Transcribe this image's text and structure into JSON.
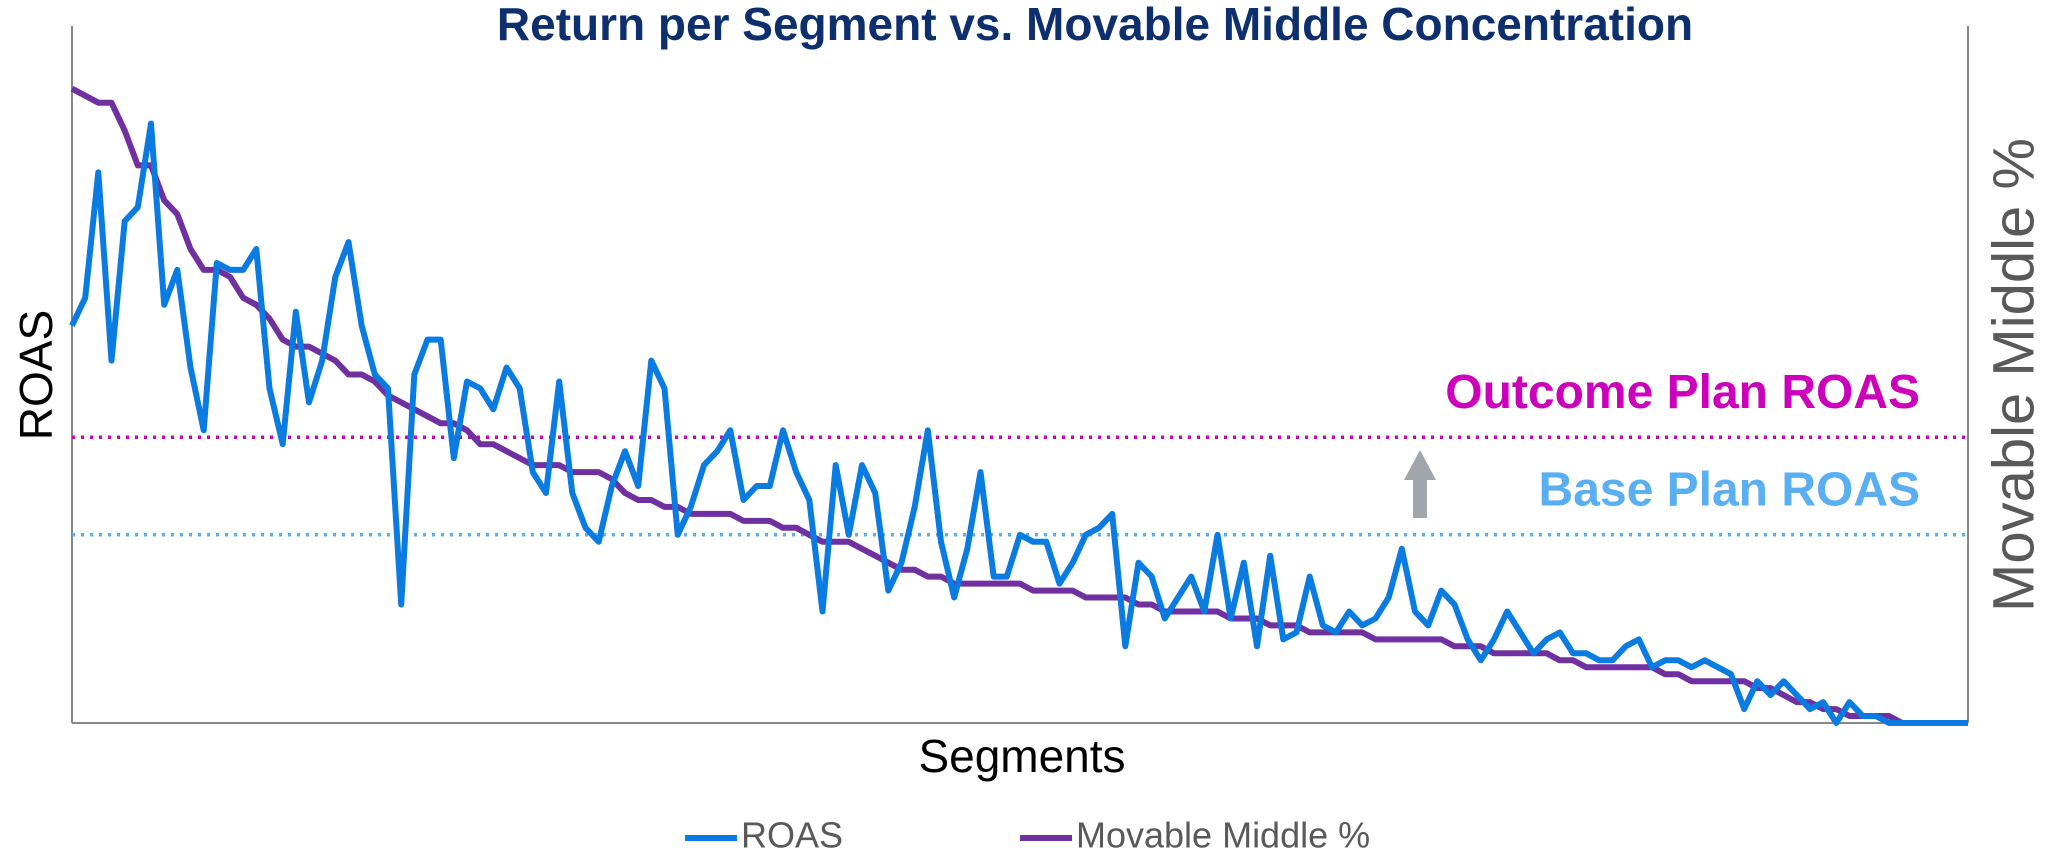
{
  "chart_data": {
    "type": "line",
    "title": "Return per Segment vs. Movable Middle Concentration",
    "xlabel": "Segments",
    "ylabel": "ROAS",
    "y2label": "Movable Middle %",
    "x": [
      1,
      2,
      3,
      4,
      5,
      6,
      7,
      8,
      9,
      10,
      11,
      12,
      13,
      14,
      15,
      16,
      17,
      18,
      19,
      20,
      21,
      22,
      23,
      24,
      25,
      26,
      27,
      28,
      29,
      30,
      31,
      32,
      33,
      34,
      35,
      36,
      37,
      38,
      39,
      40,
      41,
      42,
      43,
      44,
      45,
      46,
      47,
      48,
      49,
      50,
      51,
      52,
      53,
      54,
      55,
      56,
      57,
      58,
      59,
      60,
      61,
      62,
      63,
      64,
      65,
      66,
      67,
      68,
      69,
      70,
      71,
      72,
      73,
      74,
      75,
      76,
      77,
      78,
      79,
      80,
      81,
      82,
      83,
      84,
      85,
      86,
      87,
      88,
      89,
      90,
      91,
      92,
      93,
      94,
      95,
      96,
      97,
      98,
      99,
      100,
      101,
      102,
      103,
      104,
      105,
      106,
      107,
      108,
      109,
      110,
      111,
      112,
      113,
      114,
      115,
      116,
      117,
      118,
      119,
      120,
      121,
      122,
      123,
      124,
      125,
      126,
      127,
      128,
      129,
      130,
      131,
      132,
      133,
      134,
      135,
      136,
      137,
      138,
      139,
      140,
      141,
      142,
      143,
      144,
      145
    ],
    "xlim": [
      1,
      145
    ],
    "ylim": [
      0,
      100
    ],
    "y2lim": [
      0,
      100
    ],
    "series": [
      {
        "name": "ROAS",
        "color": "#0a7be0",
        "values": [
          57,
          61,
          79,
          52,
          72,
          74,
          86,
          60,
          65,
          51,
          42,
          66,
          65,
          65,
          68,
          48,
          40,
          59,
          46,
          52,
          64,
          69,
          57,
          50,
          48,
          17,
          50,
          55,
          55,
          38,
          49,
          48,
          45,
          51,
          48,
          36,
          33,
          49,
          33,
          28,
          26,
          34,
          39,
          34,
          52,
          48,
          27,
          31,
          37,
          39,
          42,
          32,
          34,
          34,
          42,
          36,
          32,
          16,
          37,
          27,
          37,
          33,
          19,
          23,
          31,
          42,
          26,
          18,
          25,
          36,
          21,
          21,
          27,
          26,
          26,
          20,
          23,
          27,
          28,
          30,
          11,
          23,
          21,
          15,
          18,
          21,
          16,
          27,
          15,
          23,
          11,
          24,
          12,
          13,
          21,
          14,
          13,
          16,
          14,
          15,
          18,
          25,
          16,
          14,
          19,
          17,
          12,
          9,
          12,
          16,
          13,
          10,
          12,
          13,
          10,
          10,
          9,
          9,
          11,
          12,
          8,
          9,
          9,
          8,
          9,
          8,
          7,
          2,
          6,
          4,
          6,
          4,
          2,
          3,
          0,
          3,
          1,
          1,
          0,
          0,
          0,
          0,
          0,
          0,
          0
        ]
      },
      {
        "name": "Movable Middle %",
        "color": "#7030a0",
        "axis": "y2",
        "values": [
          91,
          90,
          89,
          89,
          85,
          80,
          80,
          75,
          73,
          68,
          65,
          65,
          64,
          61,
          60,
          58,
          55,
          54,
          54,
          53,
          52,
          50,
          50,
          49,
          47,
          46,
          45,
          44,
          43,
          43,
          42,
          40,
          40,
          39,
          38,
          37,
          37,
          37,
          36,
          36,
          36,
          35,
          33,
          32,
          32,
          31,
          31,
          30,
          30,
          30,
          30,
          29,
          29,
          29,
          28,
          28,
          27,
          26,
          26,
          26,
          25,
          24,
          23,
          22,
          22,
          21,
          21,
          20,
          20,
          20,
          20,
          20,
          20,
          19,
          19,
          19,
          19,
          18,
          18,
          18,
          18,
          17,
          17,
          16,
          16,
          16,
          16,
          16,
          15,
          15,
          15,
          14,
          14,
          14,
          13,
          13,
          13,
          13,
          13,
          12,
          12,
          12,
          12,
          12,
          12,
          11,
          11,
          11,
          10,
          10,
          10,
          10,
          10,
          9,
          9,
          8,
          8,
          8,
          8,
          8,
          8,
          7,
          7,
          6,
          6,
          6,
          6,
          6,
          5,
          5,
          4,
          3,
          3,
          2,
          2,
          1,
          1,
          1,
          1,
          0,
          0,
          0,
          0,
          0,
          0
        ]
      }
    ],
    "annotations": [
      {
        "text": "Outcome Plan ROAS",
        "value": 41,
        "color": "#cc00bb"
      },
      {
        "text": "Base Plan ROAS",
        "value": 27,
        "color": "#5aaff0"
      }
    ],
    "grid": false,
    "legend": "bottom"
  }
}
